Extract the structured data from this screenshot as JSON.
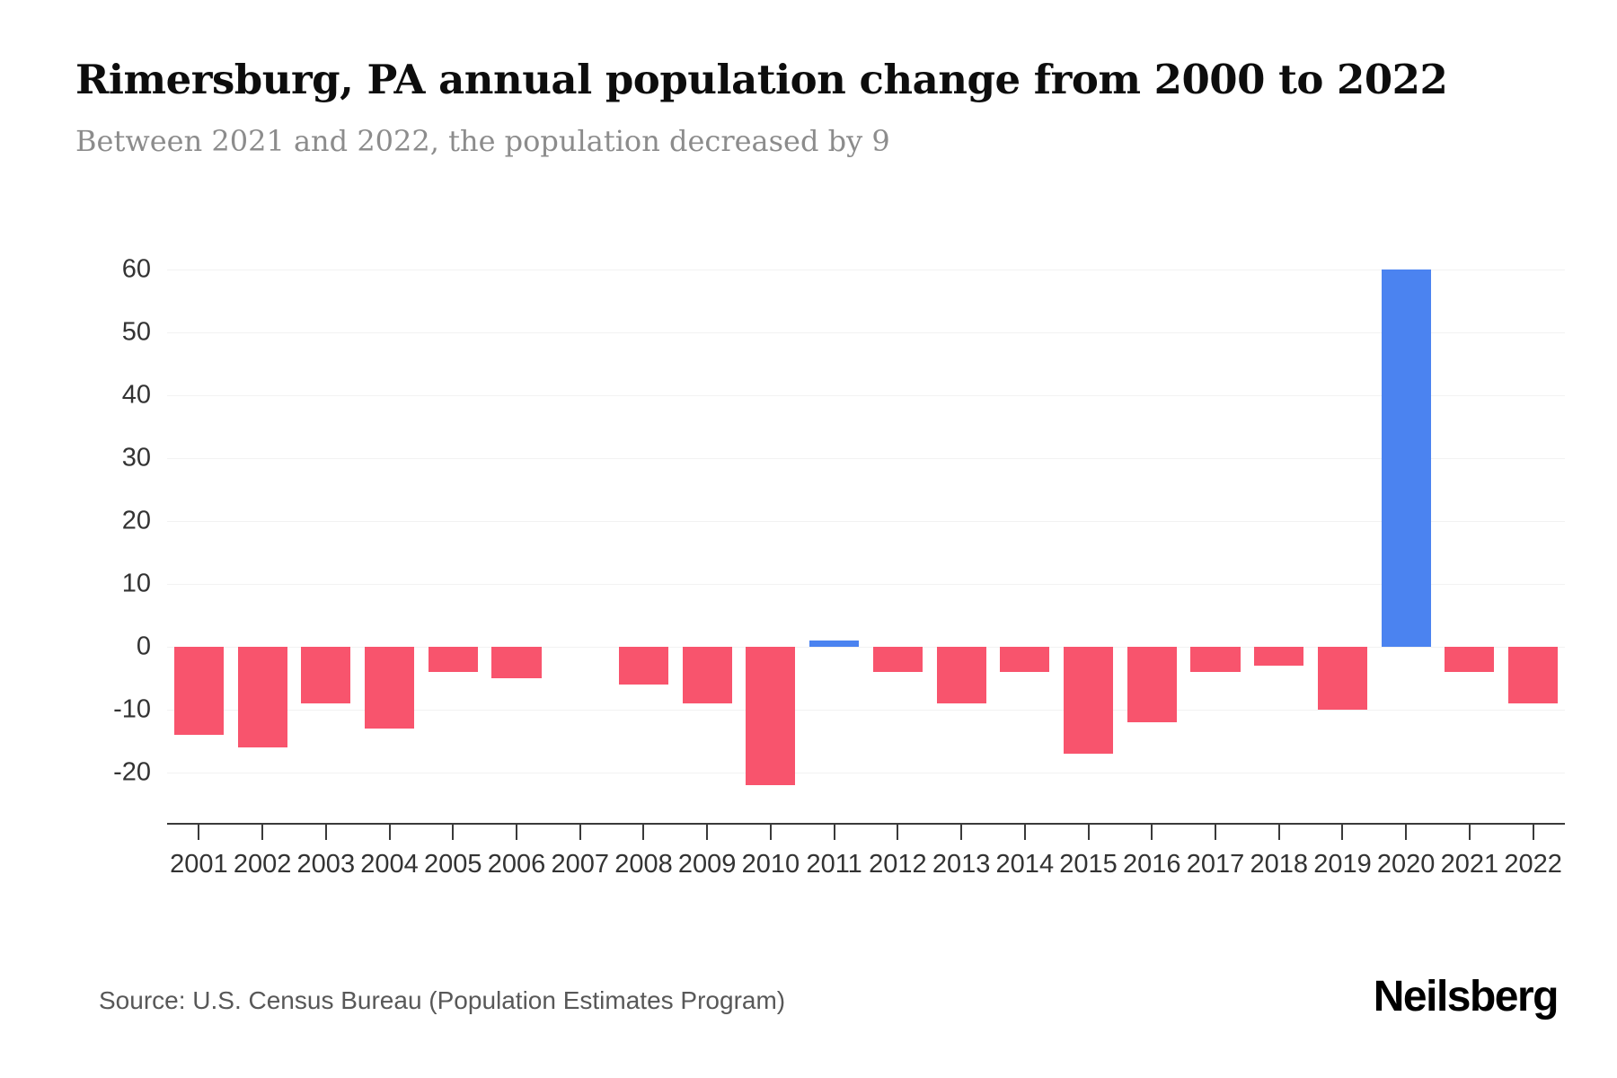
{
  "header": {
    "title": "Rimersburg, PA annual population change from 2000 to 2022",
    "subtitle": "Between 2021 and 2022, the population decreased by 9"
  },
  "footer": {
    "source": "Source: U.S. Census Bureau (Population Estimates Program)",
    "brand": "Neilsberg"
  },
  "colors": {
    "negative_bar": "#f8546d",
    "positive_bar": "#4b83f0",
    "axis_text": "#333333",
    "axis_line": "#3a3a3a",
    "gridline": "#f2f2f2",
    "subtitle_text": "#8c8c8c"
  },
  "chart_data": {
    "type": "bar",
    "title": "Rimersburg, PA annual population change from 2000 to 2022",
    "subtitle": "Between 2021 and 2022, the population decreased by 9",
    "categories": [
      "2001",
      "2002",
      "2003",
      "2004",
      "2005",
      "2006",
      "2007",
      "2008",
      "2009",
      "2010",
      "2011",
      "2012",
      "2013",
      "2014",
      "2015",
      "2016",
      "2017",
      "2018",
      "2019",
      "2020",
      "2021",
      "2022"
    ],
    "values": [
      -14,
      -16,
      -9,
      -13,
      -4,
      -5,
      0,
      -6,
      -9,
      -22,
      1,
      -4,
      -9,
      -4,
      -17,
      -12,
      -4,
      -3,
      -10,
      60,
      -4,
      -9
    ],
    "xlabel": "",
    "ylabel": "",
    "ylim": [
      -28,
      60
    ],
    "yticks": [
      -20,
      -10,
      0,
      10,
      20,
      30,
      40,
      50,
      60
    ],
    "grid": true,
    "legend": false,
    "bar_color_rule": "negative values pink-red, positive values blue"
  }
}
